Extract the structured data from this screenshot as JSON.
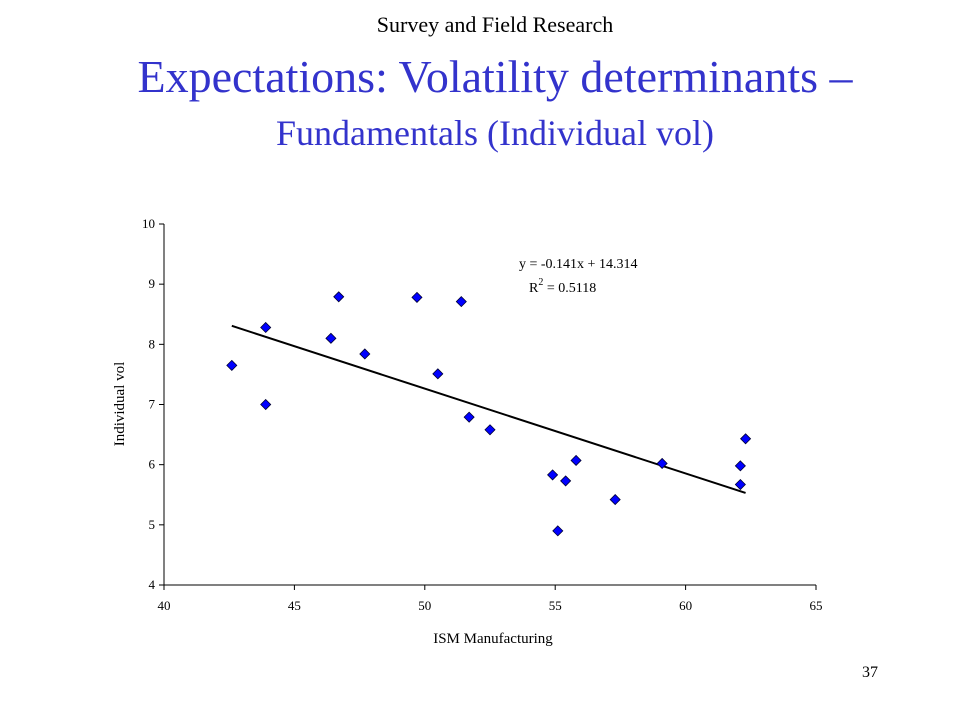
{
  "slide": {
    "supertitle": "Survey and Field Research",
    "title": "Expectations: Volatility determinants –",
    "subtitle": "Fundamentals (Individual vol)",
    "page_number": "37"
  },
  "chart_data": {
    "type": "scatter",
    "title": "",
    "xlabel": "ISM Manufacturing",
    "ylabel": "Individual vol",
    "xlim": [
      40,
      65
    ],
    "ylim": [
      4,
      10
    ],
    "xticks": [
      40,
      45,
      50,
      55,
      60,
      65
    ],
    "yticks": [
      4,
      5,
      6,
      7,
      8,
      9,
      10
    ],
    "grid": false,
    "legend": "none",
    "marker_color": "#0000ff",
    "series": [
      {
        "points": [
          {
            "x": 42.6,
            "y": 7.65
          },
          {
            "x": 43.9,
            "y": 8.28
          },
          {
            "x": 43.9,
            "y": 7.0
          },
          {
            "x": 46.4,
            "y": 8.1
          },
          {
            "x": 46.7,
            "y": 8.79
          },
          {
            "x": 47.7,
            "y": 7.84
          },
          {
            "x": 49.7,
            "y": 8.78
          },
          {
            "x": 50.5,
            "y": 7.51
          },
          {
            "x": 51.4,
            "y": 8.71
          },
          {
            "x": 51.7,
            "y": 6.79
          },
          {
            "x": 52.5,
            "y": 6.58
          },
          {
            "x": 54.9,
            "y": 5.83
          },
          {
            "x": 55.1,
            "y": 4.9
          },
          {
            "x": 55.4,
            "y": 5.73
          },
          {
            "x": 55.8,
            "y": 6.07
          },
          {
            "x": 57.3,
            "y": 5.42
          },
          {
            "x": 59.1,
            "y": 6.02
          },
          {
            "x": 62.1,
            "y": 5.98
          },
          {
            "x": 62.1,
            "y": 5.67
          },
          {
            "x": 62.3,
            "y": 6.43
          }
        ]
      }
    ],
    "trendline": {
      "slope": -0.141,
      "intercept": 14.314,
      "x_range": [
        42.6,
        62.3
      ],
      "equation": "y = -0.141x + 14.314",
      "r2_prefix": "R",
      "r2_exponent": "2",
      "r2_value": " = 0.5118"
    }
  }
}
